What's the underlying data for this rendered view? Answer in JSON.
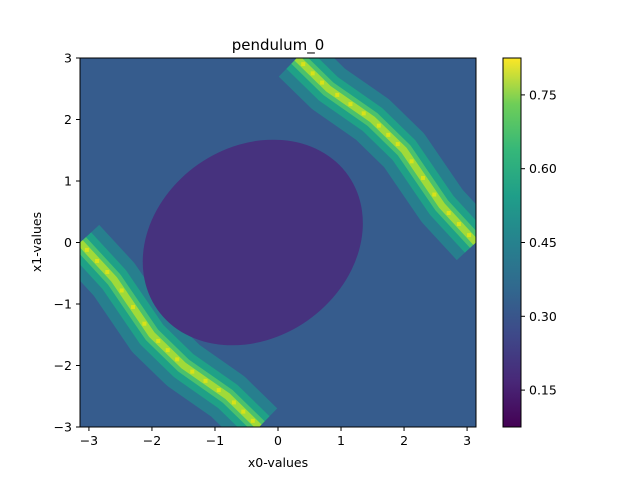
{
  "chart_data": {
    "type": "heatmap",
    "subtype": "filled-contour",
    "title": "pendulum_0",
    "xlabel": "x0-values",
    "ylabel": "x1-values",
    "xlim": [
      -3.14159,
      3.14159
    ],
    "ylim": [
      -3,
      3
    ],
    "xticks": [
      -3,
      -2,
      -1,
      0,
      1,
      2,
      3
    ],
    "xtick_labels": [
      "−3",
      "−2",
      "−1",
      "0",
      "1",
      "2",
      "3"
    ],
    "yticks": [
      -3,
      -2,
      -1,
      0,
      1,
      2,
      3
    ],
    "ytick_labels": [
      "−3",
      "−2",
      "−1",
      "0",
      "1",
      "2",
      "3"
    ],
    "colormap": "viridis",
    "colorbar": {
      "range": [
        0.075,
        0.825
      ],
      "ticks": [
        0.15,
        0.3,
        0.45,
        0.6,
        0.75
      ],
      "tick_labels": [
        "0.15",
        "0.30",
        "0.45",
        "0.60",
        "0.75"
      ]
    },
    "levels": [
      {
        "value": 0.15,
        "color": "#46327e"
      },
      {
        "value": 0.27,
        "color": "#365c8d"
      },
      {
        "value": 0.4,
        "color": "#277f8e"
      },
      {
        "value": 0.52,
        "color": "#1fa187"
      },
      {
        "value": 0.64,
        "color": "#4ac16d"
      },
      {
        "value": 0.76,
        "color": "#a0da39"
      }
    ],
    "regions": [
      {
        "name": "background",
        "value": 0.27
      },
      {
        "name": "central-ellipse",
        "value": 0.15,
        "center": [
          -0.4,
          0.0
        ],
        "rx": 1.85,
        "ry": 1.55,
        "rotation_deg": -35
      },
      {
        "name": "upper-right-band",
        "value_range": [
          0.4,
          0.8
        ],
        "centerline": [
          [
            0.3,
            3.0
          ],
          [
            0.8,
            2.5
          ],
          [
            1.5,
            2.0
          ],
          [
            2.0,
            1.5
          ],
          [
            2.6,
            0.6
          ],
          [
            3.14,
            0.0
          ]
        ]
      },
      {
        "name": "lower-left-band",
        "value_range": [
          0.4,
          0.8
        ],
        "centerline": [
          [
            -3.14,
            0.0
          ],
          [
            -2.6,
            -0.6
          ],
          [
            -2.0,
            -1.5
          ],
          [
            -1.5,
            -2.0
          ],
          [
            -0.8,
            -2.5
          ],
          [
            -0.3,
            -3.0
          ]
        ]
      }
    ],
    "grid": false,
    "legend": "none"
  }
}
